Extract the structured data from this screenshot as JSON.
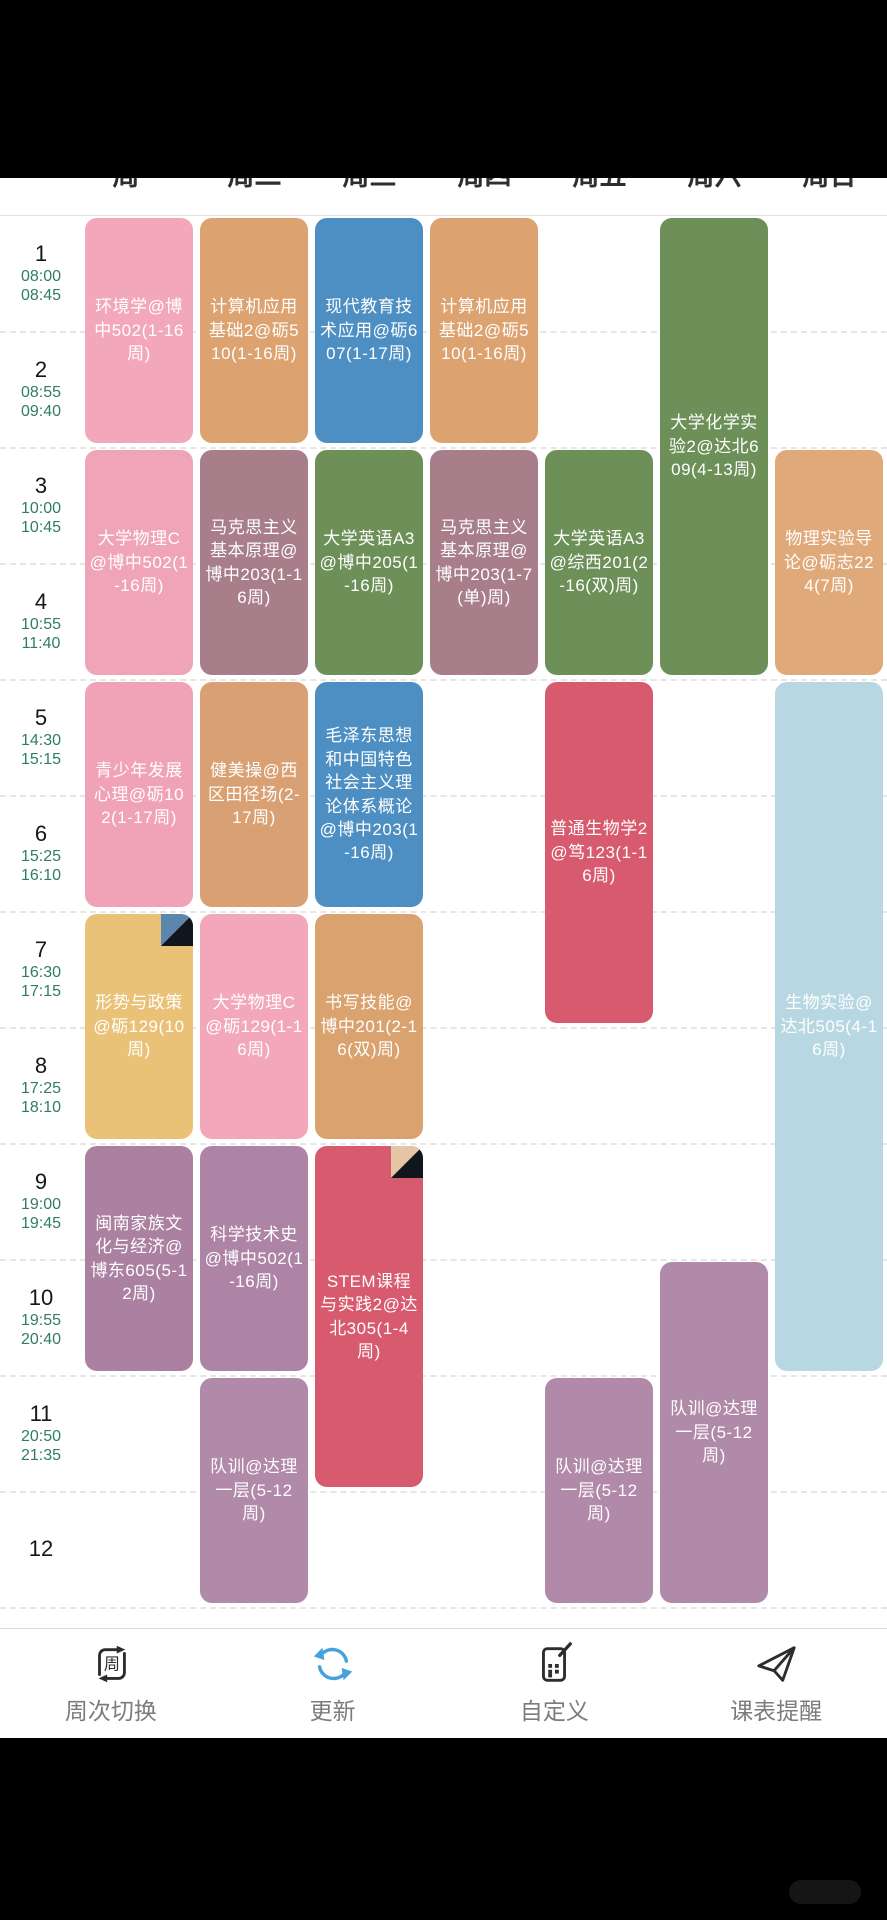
{
  "days": [
    "周一",
    "周二",
    "周三",
    "周四",
    "周五",
    "周六",
    "周日"
  ],
  "periods": [
    {
      "num": "1",
      "start": "08:00",
      "end": "08:45"
    },
    {
      "num": "2",
      "start": "08:55",
      "end": "09:40"
    },
    {
      "num": "3",
      "start": "10:00",
      "end": "10:45"
    },
    {
      "num": "4",
      "start": "10:55",
      "end": "11:40"
    },
    {
      "num": "5",
      "start": "14:30",
      "end": "15:15"
    },
    {
      "num": "6",
      "start": "15:25",
      "end": "16:10"
    },
    {
      "num": "7",
      "start": "16:30",
      "end": "17:15"
    },
    {
      "num": "8",
      "start": "17:25",
      "end": "18:10"
    },
    {
      "num": "9",
      "start": "19:00",
      "end": "19:45"
    },
    {
      "num": "10",
      "start": "19:55",
      "end": "20:40"
    },
    {
      "num": "11",
      "start": "20:50",
      "end": "21:35"
    },
    {
      "num": "12",
      "start": "",
      "end": ""
    }
  ],
  "courses": [
    {
      "name": "环境学@博中502(1-16周)",
      "day": 1,
      "start": 1,
      "span": 2,
      "color": "#f2a8ba",
      "fold": null
    },
    {
      "name": "计算机应用基础2@砺510(1-16周)",
      "day": 2,
      "start": 1,
      "span": 2,
      "color": "#dca26f",
      "fold": null
    },
    {
      "name": "现代教育技术应用@砺607(1-17周)",
      "day": 3,
      "start": 1,
      "span": 2,
      "color": "#4d8fc2",
      "fold": null
    },
    {
      "name": "计算机应用基础2@砺510(1-16周)",
      "day": 4,
      "start": 1,
      "span": 2,
      "color": "#dca26f",
      "fold": null
    },
    {
      "name": "大学化学实验2@达北609(4-13周)",
      "day": 6,
      "start": 1,
      "span": 4,
      "color": "#6d9058",
      "fold": null
    },
    {
      "name": "大学物理C@博中502(1-16周)",
      "day": 1,
      "start": 3,
      "span": 2,
      "color": "#f0a4b7",
      "fold": null
    },
    {
      "name": "马克思主义基本原理@博中203(1-16周)",
      "day": 2,
      "start": 3,
      "span": 2,
      "color": "#a87e8b",
      "fold": null
    },
    {
      "name": "大学英语A3@博中205(1-16周)",
      "day": 3,
      "start": 3,
      "span": 2,
      "color": "#6d9058",
      "fold": null
    },
    {
      "name": "马克思主义基本原理@博中203(1-7(单)周)",
      "day": 4,
      "start": 3,
      "span": 2,
      "color": "#a87e8b",
      "fold": null
    },
    {
      "name": "大学英语A3@综西201(2-16(双)周)",
      "day": 5,
      "start": 3,
      "span": 2,
      "color": "#6d9058",
      "fold": null
    },
    {
      "name": "物理实验导论@砺志224(7周)",
      "day": 7,
      "start": 3,
      "span": 2,
      "color": "#e0a97a",
      "fold": null
    },
    {
      "name": "青少年发展心理@砺102(1-17周)",
      "day": 1,
      "start": 5,
      "span": 2,
      "color": "#f0a2b6",
      "fold": null
    },
    {
      "name": "健美操@西区田径场(2-17周)",
      "day": 2,
      "start": 5,
      "span": 2,
      "color": "#d9a173",
      "fold": null
    },
    {
      "name": "毛泽东思想和中国特色社会主义理论体系概论@博中203(1-16周)",
      "day": 3,
      "start": 5,
      "span": 2,
      "color": "#4d8fc2",
      "fold": null
    },
    {
      "name": "普通生物学2@笃123(1-16周)",
      "day": 5,
      "start": 5,
      "span": 3,
      "color": "#d85a6e",
      "fold": null
    },
    {
      "name": "生物实验@达北505(4-16周)",
      "day": 7,
      "start": 5,
      "span": 6,
      "color": "#b7d7e2",
      "fold": null
    },
    {
      "name": "形势与政策@砺129(10周)",
      "day": 1,
      "start": 7,
      "span": 2,
      "color": "#e9c277",
      "fold": "#5b87ae"
    },
    {
      "name": "大学物理C@砺129(1-16周)",
      "day": 2,
      "start": 7,
      "span": 2,
      "color": "#f2a8ba",
      "fold": null
    },
    {
      "name": "书写技能@博中201(2-16(双)周)",
      "day": 3,
      "start": 7,
      "span": 2,
      "color": "#d9a26f",
      "fold": null
    },
    {
      "name": "闽南家族文化与经济@博东605(5-12周)",
      "day": 1,
      "start": 9,
      "span": 2,
      "color": "#ab80a1",
      "fold": null
    },
    {
      "name": "科学技术史@博中502(1-16周)",
      "day": 2,
      "start": 9,
      "span": 2,
      "color": "#ad84a6",
      "fold": null
    },
    {
      "name": "STEM课程与实践2@达北305(1-4周)",
      "day": 3,
      "start": 9,
      "span": 3,
      "color": "#d85a6e",
      "fold": "#e6c5a4"
    },
    {
      "name": "队训@达理一层(5-12周)",
      "day": 2,
      "start": 11,
      "span": 2,
      "color": "#b189a9",
      "fold": null
    },
    {
      "name": "队训@达理一层(5-12周)",
      "day": 5,
      "start": 11,
      "span": 2,
      "color": "#b189a9",
      "fold": null
    },
    {
      "name": "队训@达理一层(5-12周)",
      "day": 6,
      "start": 10,
      "span": 3,
      "color": "#b189a9",
      "fold": null
    }
  ],
  "toolbar": {
    "items": [
      {
        "icon": "week-switch-icon",
        "label": "周次切换"
      },
      {
        "icon": "refresh-icon",
        "label": "更新"
      },
      {
        "icon": "customize-icon",
        "label": "自定义"
      },
      {
        "icon": "paper-plane-icon",
        "label": "课表提醒"
      }
    ]
  },
  "colors": {
    "accent_refresh": "#45a2dc",
    "time_text": "#2f7d66",
    "course_text": "#ffffff",
    "toolbar_label": "#7c7c7c",
    "toolbar_icon": "#2d2d2d",
    "fold_dark": "#10161c"
  }
}
